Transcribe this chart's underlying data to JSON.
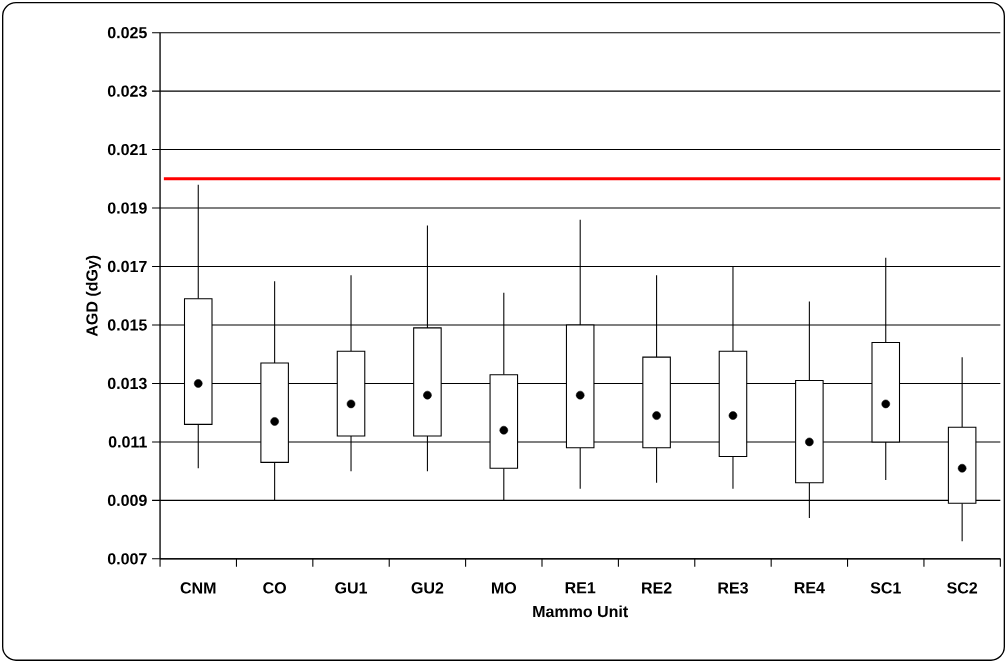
{
  "chart_data": {
    "type": "box",
    "xlabel": "Mammo Unit",
    "ylabel": "AGD (dGy)",
    "categories": [
      "CNM",
      "CO",
      "GU1",
      "GU2",
      "MO",
      "RE1",
      "RE2",
      "RE3",
      "RE4",
      "SC1",
      "SC2"
    ],
    "boxes": [
      {
        "low": 0.0101,
        "q1": 0.0116,
        "median": 0.013,
        "q3": 0.0159,
        "high": 0.0198
      },
      {
        "low": 0.009,
        "q1": 0.0103,
        "median": 0.0117,
        "q3": 0.0137,
        "high": 0.0165
      },
      {
        "low": 0.01,
        "q1": 0.0112,
        "median": 0.0123,
        "q3": 0.0141,
        "high": 0.0167
      },
      {
        "low": 0.01,
        "q1": 0.0112,
        "median": 0.0126,
        "q3": 0.0149,
        "high": 0.0184
      },
      {
        "low": 0.009,
        "q1": 0.0101,
        "median": 0.0114,
        "q3": 0.0133,
        "high": 0.0161
      },
      {
        "low": 0.0094,
        "q1": 0.0108,
        "median": 0.0126,
        "q3": 0.015,
        "high": 0.0186
      },
      {
        "low": 0.0096,
        "q1": 0.0108,
        "median": 0.0119,
        "q3": 0.0139,
        "high": 0.0167
      },
      {
        "low": 0.0094,
        "q1": 0.0105,
        "median": 0.0119,
        "q3": 0.0141,
        "high": 0.017
      },
      {
        "low": 0.0084,
        "q1": 0.0096,
        "median": 0.011,
        "q3": 0.0131,
        "high": 0.0158
      },
      {
        "low": 0.0097,
        "q1": 0.011,
        "median": 0.0123,
        "q3": 0.0144,
        "high": 0.0173
      },
      {
        "low": 0.0076,
        "q1": 0.0089,
        "median": 0.0101,
        "q3": 0.0115,
        "high": 0.0139
      }
    ],
    "ylim": [
      0.007,
      0.025
    ],
    "yticks": [
      0.007,
      0.009,
      0.011,
      0.013,
      0.015,
      0.017,
      0.019,
      0.021,
      0.023,
      0.025
    ],
    "grid": "y",
    "ref_lines": [
      {
        "axis": "y",
        "value": 0.02,
        "color": "#ff0000"
      }
    ]
  }
}
